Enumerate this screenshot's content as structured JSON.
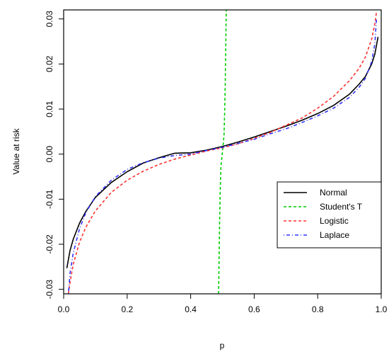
{
  "chart_data": {
    "type": "line",
    "xlabel": "p",
    "ylabel": "Value at risk",
    "xlim": [
      0.0,
      1.0
    ],
    "ylim": [
      -0.031,
      0.032
    ],
    "xticks": [
      0.0,
      0.2,
      0.4,
      0.6,
      0.8,
      1.0
    ],
    "xtick_labels": [
      "0.0",
      "0.2",
      "0.4",
      "0.6",
      "0.8",
      "1.0"
    ],
    "yticks": [
      -0.03,
      -0.02,
      -0.01,
      0.0,
      0.01,
      0.02,
      0.03
    ],
    "ytick_labels": [
      "-0.03",
      "-0.02",
      "-0.01",
      "0.00",
      "0.01",
      "0.02",
      "0.03"
    ],
    "grid": false,
    "legend_position": "bottom-right",
    "series": [
      {
        "name": "Normal",
        "color": "#000000",
        "dash": "solid",
        "x": [
          0.01,
          0.02,
          0.03,
          0.05,
          0.07,
          0.1,
          0.15,
          0.2,
          0.25,
          0.3,
          0.35,
          0.4,
          0.45,
          0.5,
          0.55,
          0.6,
          0.65,
          0.7,
          0.75,
          0.8,
          0.85,
          0.9,
          0.93,
          0.95,
          0.97,
          0.98,
          0.99
        ],
        "y": [
          -0.0253,
          -0.0214,
          -0.0189,
          -0.0153,
          -0.0127,
          -0.0096,
          -0.0063,
          -0.0039,
          -0.002,
          -0.0008,
          0.0002,
          0.0003,
          0.0009,
          0.0017,
          0.0027,
          0.0038,
          0.005,
          0.0062,
          0.0075,
          0.009,
          0.0108,
          0.0133,
          0.0155,
          0.0172,
          0.02,
          0.0222,
          0.026
        ]
      },
      {
        "name": "Student's T",
        "color": "#00cc00",
        "dash": "dashed",
        "x": [
          0.488,
          0.489,
          0.491,
          0.493,
          0.495,
          0.5,
          0.505,
          0.507,
          0.509,
          0.511,
          0.512
        ],
        "y": [
          -0.031,
          -0.025,
          -0.015,
          -0.008,
          -0.003,
          0.0005,
          0.004,
          0.009,
          0.016,
          0.026,
          0.032
        ]
      },
      {
        "name": "Logistic",
        "color": "#ff3333",
        "dash": "dashed",
        "x": [
          0.015,
          0.02,
          0.03,
          0.05,
          0.07,
          0.1,
          0.15,
          0.2,
          0.25,
          0.3,
          0.35,
          0.4,
          0.45,
          0.5,
          0.55,
          0.6,
          0.65,
          0.7,
          0.75,
          0.8,
          0.85,
          0.9,
          0.93,
          0.95,
          0.97,
          0.98,
          0.985
        ],
        "y": [
          -0.031,
          -0.0285,
          -0.0245,
          -0.0195,
          -0.0162,
          -0.0126,
          -0.0085,
          -0.0058,
          -0.0038,
          -0.0023,
          -0.0011,
          -0.0002,
          0.0007,
          0.0014,
          0.0023,
          0.0035,
          0.0048,
          0.0064,
          0.008,
          0.0102,
          0.0128,
          0.0163,
          0.019,
          0.0215,
          0.0255,
          0.029,
          0.0315
        ]
      },
      {
        "name": "Laplace",
        "color": "#3333ff",
        "dash": "dotdash",
        "x": [
          0.015,
          0.02,
          0.03,
          0.05,
          0.07,
          0.1,
          0.15,
          0.2,
          0.25,
          0.3,
          0.35,
          0.4,
          0.45,
          0.5,
          0.55,
          0.6,
          0.65,
          0.7,
          0.75,
          0.8,
          0.85,
          0.9,
          0.93,
          0.95,
          0.97,
          0.98,
          0.985
        ],
        "y": [
          -0.031,
          -0.0265,
          -0.022,
          -0.0165,
          -0.013,
          -0.0094,
          -0.0058,
          -0.0034,
          -0.0019,
          -0.0009,
          -0.0003,
          0.0,
          0.0008,
          0.0015,
          0.0024,
          0.0033,
          0.0045,
          0.0056,
          0.007,
          0.0085,
          0.0102,
          0.0126,
          0.0148,
          0.0168,
          0.0205,
          0.0245,
          0.03
        ]
      }
    ]
  }
}
